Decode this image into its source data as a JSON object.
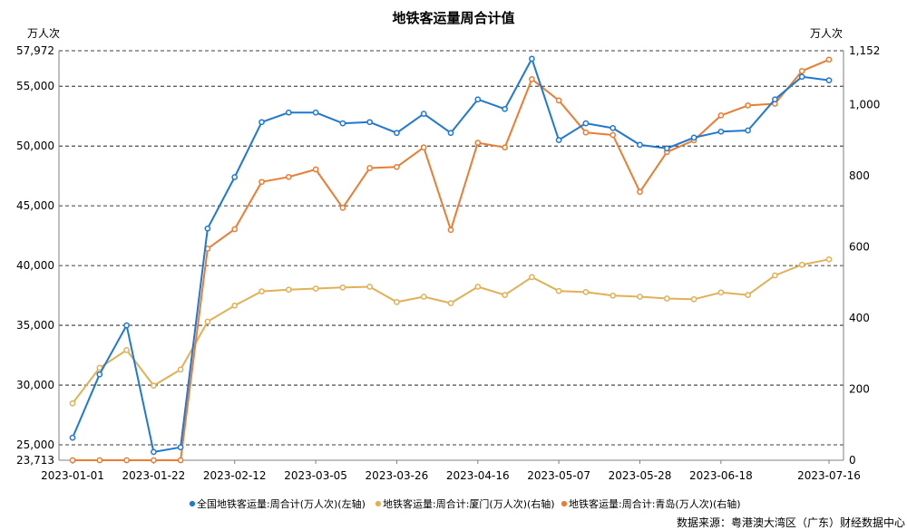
{
  "chart_data": {
    "type": "line",
    "title": "地铁客运量周合计值",
    "left_unit": "万人次",
    "right_unit": "万人次",
    "left_axis": {
      "ylim": [
        23713,
        57972
      ],
      "tick_values": [
        23713,
        25000,
        30000,
        35000,
        40000,
        45000,
        50000,
        55000,
        57972
      ],
      "tick_labels": [
        "23,713",
        "25,000",
        "30,000",
        "35,000",
        "40,000",
        "45,000",
        "50,000",
        "55,000",
        "57,972"
      ]
    },
    "right_axis": {
      "ylim": [
        0,
        1152
      ],
      "tick_values": [
        0,
        200,
        400,
        600,
        800,
        1000,
        1152
      ],
      "tick_labels": [
        "0",
        "200",
        "400",
        "600",
        "800",
        "1,000",
        "1,152"
      ]
    },
    "x_tick_labels": [
      "2023-01-01",
      "2023-01-22",
      "2023-02-12",
      "2023-03-05",
      "2023-03-26",
      "2023-04-16",
      "2023-05-07",
      "2023-05-28",
      "2023-06-18",
      "2023-07-16"
    ],
    "x": [
      "2023-01-01",
      "2023-01-08",
      "2023-01-15",
      "2023-01-22",
      "2023-01-29",
      "2023-02-05",
      "2023-02-12",
      "2023-02-19",
      "2023-02-26",
      "2023-03-05",
      "2023-03-12",
      "2023-03-19",
      "2023-03-26",
      "2023-04-02",
      "2023-04-09",
      "2023-04-16",
      "2023-04-23",
      "2023-04-30",
      "2023-05-07",
      "2023-05-14",
      "2023-05-21",
      "2023-05-28",
      "2023-06-04",
      "2023-06-11",
      "2023-06-18",
      "2023-06-25",
      "2023-07-02",
      "2023-07-09",
      "2023-07-16"
    ],
    "grid": "horizontal-dashed",
    "legend_position": "bottom",
    "series": [
      {
        "name": "全国地铁客运量:周合计(万人次)(左轴)",
        "axis": "left",
        "color": "#1f78d1",
        "values": [
          25600,
          30900,
          35000,
          24400,
          24800,
          43100,
          47400,
          52000,
          52800,
          52800,
          51900,
          52000,
          51100,
          52700,
          51100,
          53900,
          53100,
          57300,
          50500,
          51900,
          51500,
          50100,
          49800,
          50700,
          51200,
          51300,
          53900,
          55800,
          55500
        ]
      },
      {
        "name": "地铁客运量:周合计:厦门(万人次)(右轴)",
        "axis": "right",
        "color": "#e2b055",
        "values": [
          160,
          260,
          310,
          210,
          255,
          390,
          435,
          475,
          480,
          483,
          486,
          488,
          445,
          460,
          442,
          488,
          465,
          515,
          476,
          473,
          463,
          460,
          455,
          453,
          472,
          465,
          520,
          550,
          565
        ]
      },
      {
        "name": "地铁客运量:周合计:青岛(万人次)(右轴)",
        "axis": "right",
        "color": "#ea7d33",
        "values": [
          0,
          0,
          0,
          0,
          0,
          595,
          650,
          783,
          797,
          818,
          710,
          822,
          825,
          880,
          648,
          893,
          880,
          1072,
          1012,
          922,
          915,
          755,
          867,
          900,
          970,
          998,
          1003,
          1095,
          1127
        ]
      }
    ]
  },
  "footer": {
    "source": "数据来源：粤港澳大湾区（广东）财经数据中心"
  }
}
